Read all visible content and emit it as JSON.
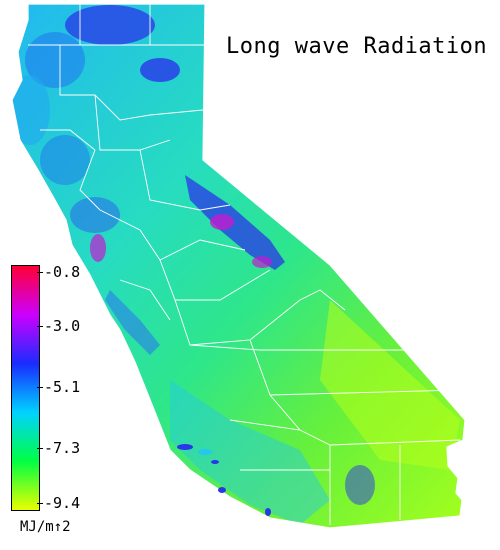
{
  "title": "Long wave Radiation",
  "legend": {
    "ticks": [
      "-0.8",
      "-3.0",
      "-5.1",
      "-7.3",
      "-9.4"
    ],
    "unit": "MJ/m↑2",
    "colors": [
      "#ff0033",
      "#cc00ff",
      "#1a2cff",
      "#00d2ff",
      "#00ff44",
      "#e8ff00"
    ]
  },
  "map": {
    "region": "California",
    "colors": {
      "ocean": "#ffffff",
      "north_base": "#22c8ee",
      "central_base": "#2de49a",
      "south_base": "#6ff23a",
      "desert": "#a8ff1a",
      "high_elevation": "#2a36e8",
      "peak": "#c21bd0",
      "county_lines": "#ffffff"
    }
  }
}
